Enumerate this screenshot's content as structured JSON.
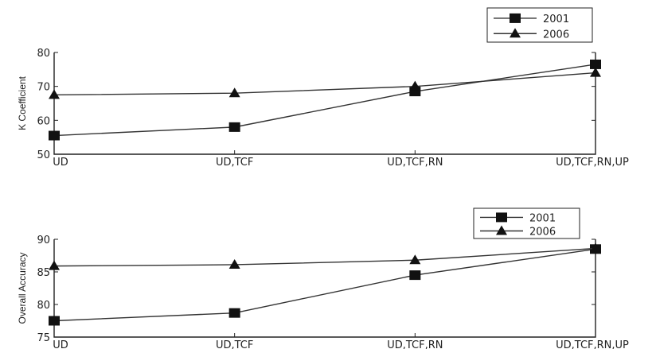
{
  "chart_data": [
    {
      "type": "line",
      "categories": [
        "UD",
        "UD,TCF",
        "UD,TCF,RN",
        "UD,TCF,RN,UP"
      ],
      "ylabel": "K Coefficient",
      "xlabel": "",
      "ylim": [
        50,
        80
      ],
      "yticks": [
        50,
        60,
        70,
        80
      ],
      "grid": false,
      "legend": "top-right",
      "series": [
        {
          "name": "2001",
          "marker": "square",
          "values": [
            55.5,
            58,
            68.5,
            76.5
          ]
        },
        {
          "name": "2006",
          "marker": "triangle",
          "values": [
            67.5,
            68,
            70,
            74
          ]
        }
      ]
    },
    {
      "type": "line",
      "categories": [
        "UD",
        "UD,TCF",
        "UD,TCF,RN",
        "UD,TCF,RN,UP"
      ],
      "ylabel": "Overall Accuracy",
      "xlabel": "",
      "ylim": [
        75,
        90
      ],
      "yticks": [
        75,
        80,
        85,
        90
      ],
      "grid": false,
      "legend": "top-right",
      "series": [
        {
          "name": "2001",
          "marker": "square",
          "values": [
            77.5,
            78.7,
            84.5,
            88.5
          ]
        },
        {
          "name": "2006",
          "marker": "triangle",
          "values": [
            85.9,
            86.1,
            86.8,
            88.6
          ]
        }
      ]
    }
  ]
}
